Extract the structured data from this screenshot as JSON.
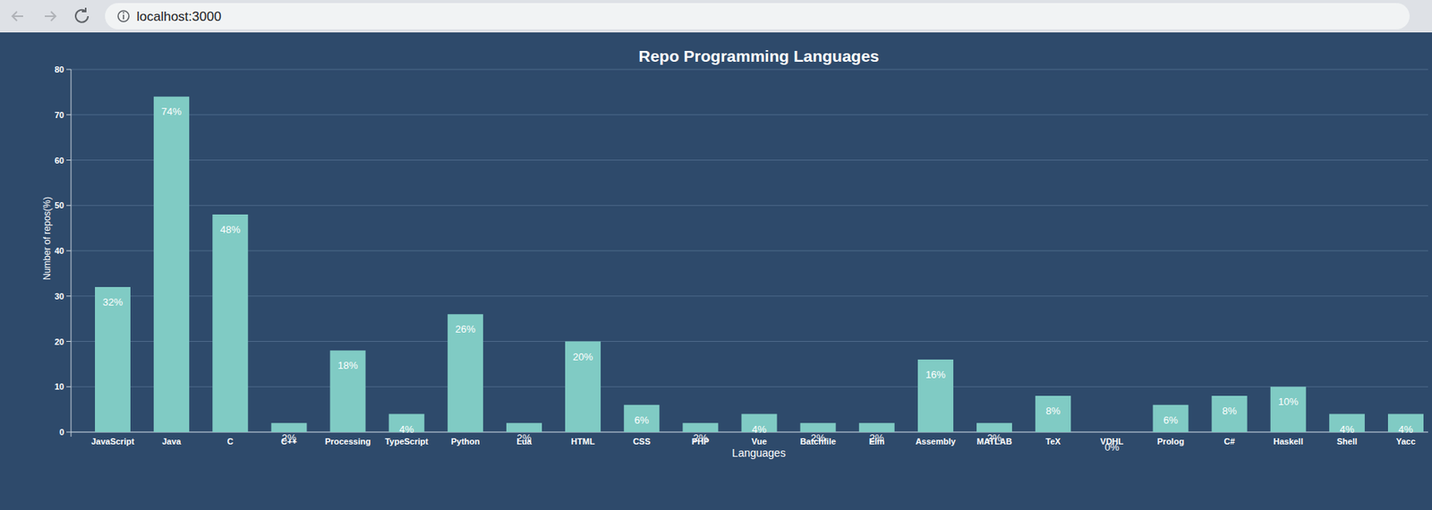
{
  "browser": {
    "url": "localhost:3000"
  },
  "chart_data": {
    "type": "bar",
    "title": "Repo Programming Languages",
    "x_label": "Languages",
    "y_label": "Number of repos(%)",
    "categories": [
      "JavaScript",
      "Java",
      "C",
      "C++",
      "Processing",
      "TypeScript",
      "Python",
      "Lua",
      "HTML",
      "CSS",
      "PHP",
      "Vue",
      "Batchfile",
      "Elm",
      "Assembly",
      "MATLAB",
      "TeX",
      "VDHL",
      "Prolog",
      "C#",
      "Haskell",
      "Shell",
      "Yacc"
    ],
    "values": [
      32,
      74,
      48,
      2,
      18,
      4,
      26,
      2,
      20,
      6,
      2,
      4,
      2,
      2,
      16,
      2,
      8,
      0,
      6,
      8,
      10,
      4,
      4
    ],
    "value_labels": [
      "32%",
      "74%",
      "48%",
      "2%",
      "18%",
      "4%",
      "26%",
      "2%",
      "20%",
      "6%",
      "2%",
      "4%",
      "2%",
      "2%",
      "16%",
      "2%",
      "8%",
      "0%",
      "6%",
      "8%",
      "10%",
      "4%",
      "4%"
    ],
    "color": "#80cbc4",
    "ylim": [
      0,
      80
    ],
    "yticks": [
      0,
      10,
      20,
      30,
      40,
      50,
      60,
      70,
      80
    ],
    "grid": true,
    "data_labels": true
  }
}
